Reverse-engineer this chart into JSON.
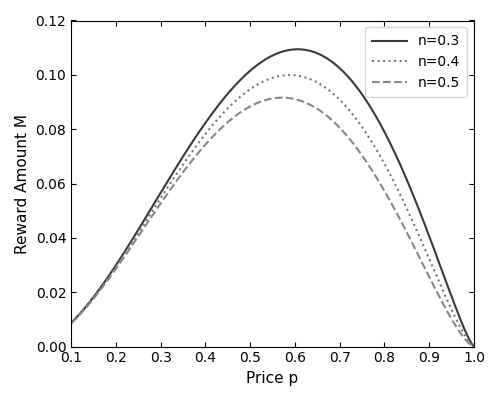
{
  "xlabel": "Price p",
  "ylabel": "Reward Amount M",
  "xlim": [
    0.1,
    1.0
  ],
  "ylim": [
    0,
    0.12
  ],
  "xticks": [
    0.1,
    0.2,
    0.3,
    0.4,
    0.5,
    0.6,
    0.7,
    0.8,
    0.9,
    1.0
  ],
  "yticks": [
    0,
    0.02,
    0.04,
    0.06,
    0.08,
    0.1,
    0.12
  ],
  "series": [
    {
      "n": 0.3,
      "label": "n=0.3",
      "linestyle": "solid",
      "color": "#3a3a3a"
    },
    {
      "n": 0.4,
      "label": "n=0.4",
      "linestyle": "dotted",
      "color": "#777777"
    },
    {
      "n": 0.5,
      "label": "n=0.5",
      "linestyle": "dashed",
      "color": "#888888"
    }
  ],
  "legend_loc": "upper right",
  "figsize": [
    5.0,
    4.01
  ],
  "dpi": 100
}
